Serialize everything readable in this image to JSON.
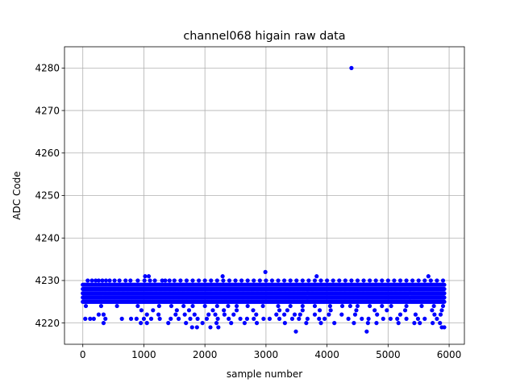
{
  "chart_data": {
    "type": "scatter",
    "title": "channel068 higain raw data",
    "xlabel": "sample number",
    "ylabel": "ADC Code",
    "xlim": [
      -300,
      6250
    ],
    "ylim": [
      4215,
      4285
    ],
    "xticks": [
      0,
      1000,
      2000,
      3000,
      4000,
      5000,
      6000
    ],
    "yticks": [
      4220,
      4230,
      4240,
      4250,
      4260,
      4270,
      4280
    ],
    "grid": true,
    "color": "#0000ff",
    "series": [
      {
        "band": {
          "x_range": [
            0,
            5920
          ],
          "y_values": [
            4225,
            4226,
            4227,
            4228,
            4229
          ],
          "step": 16
        },
        "points": [
          [
            80,
            4230
          ],
          [
            150,
            4230
          ],
          [
            210,
            4230
          ],
          [
            260,
            4230
          ],
          [
            320,
            4230
          ],
          [
            380,
            4230
          ],
          [
            440,
            4230
          ],
          [
            520,
            4230
          ],
          [
            600,
            4230
          ],
          [
            700,
            4230
          ],
          [
            780,
            4230
          ],
          [
            900,
            4230
          ],
          [
            1010,
            4230
          ],
          [
            1100,
            4230
          ],
          [
            1180,
            4230
          ],
          [
            1300,
            4230
          ],
          [
            1350,
            4230
          ],
          [
            1420,
            4230
          ],
          [
            1500,
            4230
          ],
          [
            1600,
            4230
          ],
          [
            1700,
            4230
          ],
          [
            1800,
            4230
          ],
          [
            1900,
            4230
          ],
          [
            2000,
            4230
          ],
          [
            2100,
            4230
          ],
          [
            2200,
            4230
          ],
          [
            2300,
            4230
          ],
          [
            2400,
            4230
          ],
          [
            2500,
            4230
          ],
          [
            2600,
            4230
          ],
          [
            2700,
            4230
          ],
          [
            2800,
            4230
          ],
          [
            2900,
            4230
          ],
          [
            3000,
            4230
          ],
          [
            3100,
            4230
          ],
          [
            3200,
            4230
          ],
          [
            3300,
            4230
          ],
          [
            3400,
            4230
          ],
          [
            3500,
            4230
          ],
          [
            3600,
            4230
          ],
          [
            3700,
            4230
          ],
          [
            3800,
            4230
          ],
          [
            3900,
            4230
          ],
          [
            4000,
            4230
          ],
          [
            4100,
            4230
          ],
          [
            4200,
            4230
          ],
          [
            4300,
            4230
          ],
          [
            4400,
            4230
          ],
          [
            4500,
            4230
          ],
          [
            4600,
            4230
          ],
          [
            4700,
            4230
          ],
          [
            4800,
            4230
          ],
          [
            4900,
            4230
          ],
          [
            5000,
            4230
          ],
          [
            5100,
            4230
          ],
          [
            5200,
            4230
          ],
          [
            5300,
            4230
          ],
          [
            5400,
            4230
          ],
          [
            5500,
            4230
          ],
          [
            5600,
            4230
          ],
          [
            5700,
            4230
          ],
          [
            5800,
            4230
          ],
          [
            5900,
            4230
          ],
          [
            1020,
            4231
          ],
          [
            1080,
            4231
          ],
          [
            2290,
            4231
          ],
          [
            3830,
            4231
          ],
          [
            5660,
            4231
          ],
          [
            2990,
            4232
          ],
          [
            50,
            4224
          ],
          [
            300,
            4224
          ],
          [
            560,
            4224
          ],
          [
            900,
            4224
          ],
          [
            1250,
            4224
          ],
          [
            1450,
            4224
          ],
          [
            1650,
            4224
          ],
          [
            1800,
            4224
          ],
          [
            2000,
            4224
          ],
          [
            2200,
            4224
          ],
          [
            2380,
            4224
          ],
          [
            2520,
            4224
          ],
          [
            2700,
            4224
          ],
          [
            2950,
            4224
          ],
          [
            3200,
            4224
          ],
          [
            3400,
            4224
          ],
          [
            3600,
            4224
          ],
          [
            3800,
            4224
          ],
          [
            4050,
            4224
          ],
          [
            4250,
            4224
          ],
          [
            4380,
            4224
          ],
          [
            4500,
            4224
          ],
          [
            4700,
            4224
          ],
          [
            4900,
            4224
          ],
          [
            5050,
            4224
          ],
          [
            5300,
            4224
          ],
          [
            5550,
            4224
          ],
          [
            5750,
            4224
          ],
          [
            5900,
            4224
          ],
          [
            960,
            4223
          ],
          [
            1150,
            4223
          ],
          [
            1540,
            4223
          ],
          [
            1740,
            4223
          ],
          [
            2130,
            4223
          ],
          [
            2310,
            4223
          ],
          [
            2520,
            4223
          ],
          [
            2790,
            4223
          ],
          [
            3220,
            4223
          ],
          [
            3350,
            4223
          ],
          [
            3600,
            4223
          ],
          [
            3880,
            4223
          ],
          [
            4060,
            4223
          ],
          [
            4480,
            4223
          ],
          [
            4780,
            4223
          ],
          [
            4980,
            4223
          ],
          [
            5280,
            4223
          ],
          [
            5720,
            4223
          ],
          [
            5880,
            4223
          ],
          [
            260,
            4222
          ],
          [
            340,
            4222
          ],
          [
            1050,
            4222
          ],
          [
            1240,
            4222
          ],
          [
            1520,
            4222
          ],
          [
            1670,
            4222
          ],
          [
            1830,
            4222
          ],
          [
            2060,
            4222
          ],
          [
            2170,
            4222
          ],
          [
            2320,
            4222
          ],
          [
            2470,
            4222
          ],
          [
            2840,
            4222
          ],
          [
            3170,
            4222
          ],
          [
            3300,
            4222
          ],
          [
            3470,
            4222
          ],
          [
            3560,
            4222
          ],
          [
            3800,
            4222
          ],
          [
            4030,
            4222
          ],
          [
            4240,
            4222
          ],
          [
            4460,
            4222
          ],
          [
            4820,
            4222
          ],
          [
            5200,
            4222
          ],
          [
            5450,
            4222
          ],
          [
            5760,
            4222
          ],
          [
            5860,
            4222
          ],
          [
            40,
            4221
          ],
          [
            120,
            4221
          ],
          [
            180,
            4221
          ],
          [
            370,
            4221
          ],
          [
            640,
            4221
          ],
          [
            790,
            4221
          ],
          [
            880,
            4221
          ],
          [
            1000,
            4221
          ],
          [
            1120,
            4221
          ],
          [
            1260,
            4221
          ],
          [
            1440,
            4221
          ],
          [
            1570,
            4221
          ],
          [
            1760,
            4221
          ],
          [
            1880,
            4221
          ],
          [
            2030,
            4221
          ],
          [
            2210,
            4221
          ],
          [
            2390,
            4221
          ],
          [
            2580,
            4221
          ],
          [
            2690,
            4221
          ],
          [
            2800,
            4221
          ],
          [
            2960,
            4221
          ],
          [
            3060,
            4221
          ],
          [
            3220,
            4221
          ],
          [
            3430,
            4221
          ],
          [
            3540,
            4221
          ],
          [
            3680,
            4221
          ],
          [
            3870,
            4221
          ],
          [
            3960,
            4221
          ],
          [
            4350,
            4221
          ],
          [
            4570,
            4221
          ],
          [
            4680,
            4221
          ],
          [
            4920,
            4221
          ],
          [
            5040,
            4221
          ],
          [
            5150,
            4221
          ],
          [
            5300,
            4221
          ],
          [
            5490,
            4221
          ],
          [
            5600,
            4221
          ],
          [
            5800,
            4221
          ],
          [
            340,
            4220
          ],
          [
            950,
            4220
          ],
          [
            1050,
            4220
          ],
          [
            1400,
            4220
          ],
          [
            1690,
            4220
          ],
          [
            1960,
            4220
          ],
          [
            2190,
            4220
          ],
          [
            2430,
            4220
          ],
          [
            2650,
            4220
          ],
          [
            2850,
            4220
          ],
          [
            3310,
            4220
          ],
          [
            3660,
            4220
          ],
          [
            3900,
            4220
          ],
          [
            4120,
            4220
          ],
          [
            4440,
            4220
          ],
          [
            4670,
            4220
          ],
          [
            4810,
            4220
          ],
          [
            5170,
            4220
          ],
          [
            5430,
            4220
          ],
          [
            5520,
            4220
          ],
          [
            5730,
            4220
          ],
          [
            5850,
            4220
          ],
          [
            1790,
            4219
          ],
          [
            1870,
            4219
          ],
          [
            2090,
            4219
          ],
          [
            2220,
            4219
          ],
          [
            5880,
            4219
          ],
          [
            5920,
            4219
          ],
          [
            3490,
            4218
          ],
          [
            4650,
            4218
          ],
          [
            4400,
            4280
          ]
        ]
      }
    ]
  }
}
